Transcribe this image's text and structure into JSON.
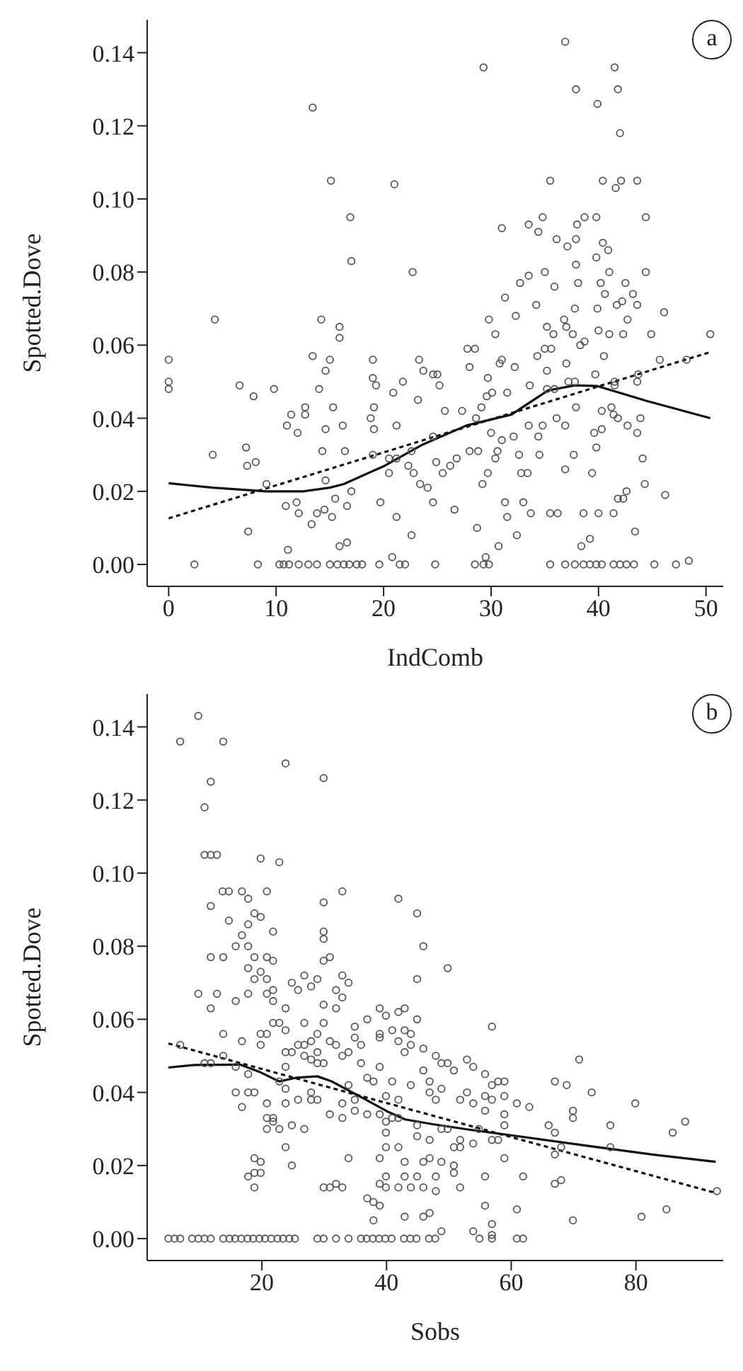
{
  "chart_data": [
    {
      "type": "scatter",
      "xlabel": "IndComb",
      "ylabel": "Spotted.Dove",
      "annotations": [
        "a"
      ],
      "xlim": [
        -2,
        51.6
      ],
      "xticks": [
        0,
        10,
        20,
        30,
        40,
        50
      ],
      "ylim": [
        -0.006,
        0.149
      ],
      "yticks": [
        {
          "value": 0,
          "label": "0.00"
        },
        {
          "value": 0.02,
          "label": "0.02"
        },
        {
          "value": 0.04,
          "label": "0.04"
        },
        {
          "value": 0.06,
          "label": "0.06"
        },
        {
          "value": 0.08,
          "label": "0.08"
        },
        {
          "value": 0.1,
          "label": "0.10"
        },
        {
          "value": 0.12,
          "label": "0.12"
        },
        {
          "value": 0.14,
          "label": "0.14"
        }
      ],
      "series": [
        {
          "marker": "circle",
          "color": "#555555",
          "x": [
            0,
            0,
            0,
            4.3,
            2.4,
            4.1,
            6.6,
            7.2,
            7.3,
            7.4,
            7.9,
            8.1,
            8.3,
            9.1,
            9.8,
            11,
            11.4,
            11.1,
            10.9,
            10.3,
            10.7,
            11.2,
            12.1,
            13,
            13.8,
            12.7,
            12.7,
            12,
            11.9,
            12.1,
            13.4,
            13.4,
            14,
            14.2,
            14.6,
            15,
            15.1,
            14.6,
            14.3,
            14.6,
            14.5,
            13.3,
            13.8,
            15.2,
            15.3,
            15.5,
            15.9,
            15.9,
            16.9,
            17,
            16.2,
            16.4,
            16.6,
            16.6,
            15.9,
            17,
            15,
            15.7,
            16.3,
            16.8,
            17.5,
            18,
            19,
            19,
            19.3,
            19.1,
            18.8,
            19.1,
            19,
            19.7,
            21,
            20.9,
            21.2,
            20.5,
            20.5,
            21.2,
            21.2,
            20.8,
            19.6,
            21.5,
            22,
            22.7,
            21.8,
            23.3,
            23.2,
            23.7,
            22.6,
            22.8,
            22.3,
            23.4,
            24.1,
            22.6,
            24.6,
            24.6,
            25,
            25.2,
            24.6,
            24.9,
            25.5,
            25.7,
            26.2,
            26.6,
            26.8,
            27.3,
            24.8,
            27.8,
            28.5,
            28,
            28,
            28.8,
            28.6,
            29.1,
            29.2,
            28.7,
            29.5,
            29.3,
            28.5,
            29.3,
            29.8,
            29.8,
            29.7,
            29.6,
            30,
            29.7,
            30.1,
            30.4,
            30.6,
            30.4,
            30.7,
            31,
            31.3,
            30.8,
            31,
            31.3,
            31.5,
            31.5,
            31,
            32.2,
            32.3,
            32.7,
            32.4,
            32.1,
            32.6,
            32.8,
            33.4,
            33,
            33.5,
            33.5,
            33.6,
            33.5,
            33.7,
            34.4,
            34.2,
            34.3,
            34.4,
            34.5,
            34.8,
            35,
            35,
            35.2,
            35.2,
            35.2,
            34.8,
            35.5,
            35.6,
            35.8,
            35.9,
            36.1,
            35.9,
            36.1,
            35.5,
            36.2,
            35.5,
            36.9,
            37.8,
            38.6,
            39.2,
            39.8,
            40.3,
            41.4,
            42,
            42.6,
            43.3,
            36.9,
            36.8,
            37,
            37.1,
            37,
            37.2,
            36.9,
            36.9,
            37.9,
            38,
            37.9,
            37.9,
            38.1,
            37.8,
            37.6,
            37.8,
            37.9,
            37.7,
            38.4,
            38.6,
            38.7,
            38.3,
            38.7,
            39.2,
            39.4,
            39.6,
            39.7,
            39.8,
            39.9,
            39.8,
            39.9,
            40,
            39.8,
            40,
            40.2,
            40.4,
            40.4,
            40.5,
            40.3,
            40.3,
            40.6,
            40.9,
            41,
            41,
            41.5,
            41.8,
            42,
            41.6,
            42.1,
            41.7,
            42.2,
            41.5,
            41.5,
            41.2,
            41.4,
            41.8,
            41.4,
            41.8,
            42.5,
            42.7,
            42.3,
            42.7,
            42.3,
            42.6,
            43.6,
            43.2,
            43.6,
            43.7,
            43.6,
            43.6,
            43.9,
            43.4,
            44.4,
            44.4,
            44.1,
            44.3,
            44.9,
            46.1,
            45.7,
            46.2,
            45.2,
            47.2,
            48.4,
            48.2,
            50.4
          ],
          "values": [
            0.056,
            0.05,
            0.048,
            0.067,
            0,
            0.03,
            0.049,
            0.032,
            0.027,
            0.009,
            0.046,
            0.028,
            0,
            0.022,
            0.048,
            0.038,
            0.041,
            0.004,
            0.016,
            0,
            0,
            0,
            0,
            0,
            0,
            0.043,
            0.041,
            0.036,
            0.017,
            0.014,
            0.125,
            0.057,
            0.048,
            0.067,
            0.053,
            0.056,
            0.105,
            0.037,
            0.031,
            0.023,
            0.015,
            0.011,
            0.014,
            0.013,
            0.043,
            0.018,
            0.065,
            0.062,
            0.095,
            0.083,
            0.038,
            0.031,
            0.016,
            0.006,
            0.005,
            0.02,
            0,
            0,
            0,
            0,
            0,
            0,
            0.056,
            0.051,
            0.049,
            0.043,
            0.04,
            0.037,
            0.03,
            0.017,
            0.104,
            0.047,
            0.038,
            0.029,
            0.025,
            0.029,
            0.013,
            0.002,
            0,
            0,
            0,
            0.08,
            0.05,
            0.056,
            0.045,
            0.053,
            0.031,
            0.025,
            0.027,
            0.022,
            0.021,
            0.008,
            0.035,
            0.052,
            0.052,
            0.049,
            0.017,
            0.028,
            0.025,
            0.042,
            0.027,
            0.015,
            0.029,
            0.042,
            0,
            0.059,
            0.059,
            0.054,
            0.031,
            0.031,
            0.04,
            0.043,
            0.022,
            0.01,
            0.002,
            0.136,
            0,
            0,
            0,
            0.067,
            0.051,
            0.046,
            0.036,
            0.025,
            0.047,
            0.063,
            0.031,
            0.029,
            0.005,
            0.092,
            0.073,
            0.055,
            0.056,
            0.017,
            0.013,
            0.047,
            0.034,
            0.054,
            0.068,
            0.077,
            0.008,
            0.035,
            0.03,
            0.025,
            0.025,
            0.017,
            0.093,
            0.079,
            0.049,
            0.038,
            0.014,
            0.091,
            0.071,
            0.057,
            0.035,
            0.03,
            0.095,
            0.08,
            0.059,
            0.053,
            0.065,
            0.048,
            0.038,
            0.105,
            0.059,
            0.063,
            0.076,
            0.089,
            0.048,
            0.04,
            0.014,
            0.014,
            0,
            0,
            0,
            0,
            0,
            0,
            0,
            0,
            0,
            0,
            0,
            0.143,
            0.067,
            0.065,
            0.087,
            0.055,
            0.05,
            0.026,
            0.038,
            0.13,
            0.093,
            0.089,
            0.082,
            0.077,
            0.07,
            0.063,
            0.05,
            0.043,
            0.03,
            0.005,
            0.014,
            0.095,
            0.06,
            0.061,
            0.007,
            0.025,
            0.036,
            0.052,
            0.095,
            0.126,
            0.084,
            0.07,
            0.064,
            0.032,
            0.014,
            0.077,
            0.105,
            0.088,
            0.057,
            0.042,
            0.037,
            0.074,
            0.086,
            0.08,
            0.063,
            0.136,
            0.13,
            0.118,
            0.103,
            0.105,
            0.071,
            0.072,
            0.05,
            0.049,
            0.043,
            0.041,
            0.04,
            0.014,
            0.018,
            0.077,
            0.067,
            0.063,
            0.038,
            0.018,
            0.02,
            0.105,
            0.074,
            0.071,
            0.052,
            0.05,
            0.036,
            0.04,
            0.009,
            0.095,
            0.08,
            0.029,
            0.022,
            0.063,
            0.069,
            0.056,
            0.019,
            0,
            0,
            0.001,
            0.056,
            0.063
          ]
        },
        {
          "type": "line",
          "line_style": "solid",
          "color": "#111111",
          "x": [
            0,
            4.1,
            9.1,
            12.5,
            15,
            16.3,
            20.1,
            23.5,
            27.7,
            31.9,
            35.3,
            37.8,
            39.9,
            44.5,
            50.4
          ],
          "values": [
            0.0222,
            0.021,
            0.02,
            0.02,
            0.021,
            0.022,
            0.027,
            0.0326,
            0.038,
            0.041,
            0.0476,
            0.049,
            0.0488,
            0.0447,
            0.04
          ]
        },
        {
          "type": "line",
          "line_style": "dashed",
          "color": "#111111",
          "x": [
            0,
            50.4
          ],
          "values": [
            0.0126,
            0.0581
          ]
        }
      ]
    },
    {
      "type": "scatter",
      "xlabel": "Sobs",
      "ylabel": "Spotted.Dove",
      "annotations": [
        "b"
      ],
      "xlim": [
        1.6,
        94
      ],
      "xticks": [
        20,
        40,
        60,
        80
      ],
      "ylim": [
        -0.006,
        0.149
      ],
      "yticks": [
        {
          "value": 0,
          "label": "0.00"
        },
        {
          "value": 0.02,
          "label": "0.02"
        },
        {
          "value": 0.04,
          "label": "0.04"
        },
        {
          "value": 0.06,
          "label": "0.06"
        },
        {
          "value": 0.08,
          "label": "0.08"
        },
        {
          "value": 0.1,
          "label": "0.10"
        },
        {
          "value": 0.12,
          "label": "0.12"
        },
        {
          "value": 0.14,
          "label": "0.14"
        }
      ],
      "series": [
        {
          "marker": "circle",
          "color": "#555555",
          "x": [
            5,
            6,
            6.9,
            8.8,
            9.8,
            10.8,
            11.8,
            13.8,
            14.8,
            15.7,
            16.7,
            17.7,
            18.6,
            19.6,
            20.5,
            21.5,
            22.5,
            23.4,
            24.4,
            25.3,
            28.9,
            29.9,
            31.9,
            33.9,
            35.9,
            36.8,
            37.8,
            38.8,
            39.8,
            40.8,
            42.8,
            43.8,
            44.8,
            46.8,
            47.8,
            54.9,
            56.9,
            60.9,
            61.9,
            6.9,
            9.8,
            11.8,
            10.8,
            10.8,
            11.8,
            12.8,
            13.8,
            23.8,
            29.9,
            11.8,
            13.7,
            14.7,
            14.7,
            9.8,
            11.8,
            11.8,
            12.8,
            13.8,
            13.8,
            13.8,
            6.9,
            10.8,
            11.8,
            15.8,
            15.8,
            15.8,
            16.8,
            16.8,
            17.8,
            16.8,
            15.8,
            16.8,
            17.8,
            17.8,
            17.8,
            17.8,
            17.8,
            17.8,
            18.8,
            18.8,
            18.8,
            18.8,
            19.8,
            19.8,
            19.8,
            19.8,
            19.8,
            20.8,
            20.8,
            20.8,
            20.8,
            20.8,
            20.8,
            20.8,
            20.8,
            18.8,
            19.8,
            18.8,
            19.8,
            17.8,
            18.8,
            21.8,
            21.8,
            21.8,
            21.8,
            21.8,
            22.8,
            22.8,
            21.8,
            21.8,
            22.8,
            22.8,
            23.8,
            23.8,
            23.8,
            23.8,
            23.8,
            23.8,
            23.8,
            24.8,
            24.8,
            24.8,
            24.8,
            25.8,
            25.8,
            25.8,
            26.8,
            26.8,
            26.8,
            26.8,
            26.8,
            27.9,
            27.9,
            27.9,
            27.9,
            27.9,
            28.9,
            28.9,
            28.9,
            28.9,
            28.9,
            29.9,
            29.9,
            29.9,
            29.9,
            29.9,
            29.9,
            29.9,
            30.9,
            30.9,
            30.9,
            29.9,
            30.9,
            31.9,
            32.9,
            31.9,
            31.9,
            31.9,
            32.9,
            32.9,
            32.9,
            32.9,
            32.9,
            32.9,
            33.9,
            33.9,
            33.9,
            33.9,
            34.9,
            34.9,
            34.9,
            34.9,
            35.9,
            35.9,
            36.9,
            36.9,
            36.9,
            36.9,
            37.9,
            37.9,
            37.9,
            38.9,
            38.9,
            38.9,
            38.9,
            38.9,
            38.9,
            38.9,
            38.9,
            39.9,
            39.9,
            39.9,
            39.9,
            39.9,
            39.9,
            39.9,
            40.9,
            40.9,
            40.9,
            41.9,
            41.9,
            41.9,
            41.9,
            41.9,
            41.9,
            41.9,
            42.9,
            42.9,
            42.9,
            42.9,
            42.9,
            42.9,
            43.9,
            43.9,
            43.9,
            43.9,
            44.9,
            44.9,
            44.9,
            44.9,
            44.9,
            44.9,
            45.9,
            45.9,
            45.9,
            45.9,
            45.9,
            45.9,
            46.9,
            46.9,
            46.9,
            46.9,
            46.9,
            47.9,
            47.9,
            47.9,
            47.9,
            48.8,
            48.8,
            48.8,
            48.8,
            48.8,
            49.8,
            49.8,
            49.8,
            50.8,
            50.8,
            50.8,
            50.8,
            51.8,
            51.8,
            51.8,
            51.8,
            52.9,
            52.9,
            53.9,
            53.9,
            53.9,
            53.9,
            54.8,
            55.8,
            55.8,
            55.8,
            55.8,
            55.8,
            56.9,
            56.9,
            56.9,
            56.9,
            56.9,
            56.9,
            57.9,
            57.9,
            58.9,
            58.9,
            58.9,
            58.9,
            58.9,
            60.9,
            60.9,
            61.9,
            62.9,
            66,
            67,
            67,
            67,
            67,
            68,
            68,
            68.9,
            69.9,
            69.9,
            69.9,
            70.9,
            72.9,
            75.9,
            75.9,
            79.9,
            80.9,
            84.9,
            85.9,
            87.9,
            93
          ],
          "values": [
            0,
            0,
            0,
            0,
            0,
            0,
            0,
            0,
            0,
            0,
            0,
            0,
            0,
            0,
            0,
            0,
            0,
            0,
            0,
            0,
            0,
            0,
            0,
            0,
            0,
            0,
            0,
            0,
            0,
            0,
            0,
            0,
            0,
            0,
            0,
            0,
            0,
            0,
            0,
            0.136,
            0.143,
            0.125,
            0.118,
            0.105,
            0.105,
            0.105,
            0.136,
            0.13,
            0.126,
            0.091,
            0.095,
            0.095,
            0.087,
            0.067,
            0.077,
            0.063,
            0.067,
            0.077,
            0.056,
            0.05,
            0.053,
            0.048,
            0.048,
            0.08,
            0.065,
            0.047,
            0.095,
            0.083,
            0.08,
            0.054,
            0.04,
            0.036,
            0.093,
            0.086,
            0.074,
            0.067,
            0.045,
            0.04,
            0.04,
            0.089,
            0.071,
            0.077,
            0.104,
            0.088,
            0.073,
            0.056,
            0.053,
            0.095,
            0.077,
            0.067,
            0.071,
            0.056,
            0.037,
            0.033,
            0.03,
            0.022,
            0.021,
            0.018,
            0.018,
            0.017,
            0.014,
            0.084,
            0.076,
            0.068,
            0.065,
            0.059,
            0.059,
            0.103,
            0.032,
            0.033,
            0.03,
            0.043,
            0.063,
            0.057,
            0.051,
            0.047,
            0.041,
            0.037,
            0.025,
            0.07,
            0.051,
            0.031,
            0.02,
            0.068,
            0.053,
            0.038,
            0.072,
            0.059,
            0.053,
            0.05,
            0.03,
            0.069,
            0.054,
            0.049,
            0.04,
            0.038,
            0.071,
            0.056,
            0.051,
            0.048,
            0.038,
            0.092,
            0.084,
            0.082,
            0.076,
            0.064,
            0.059,
            0.048,
            0.077,
            0.054,
            0.034,
            0.014,
            0.014,
            0.015,
            0.014,
            0.068,
            0.063,
            0.053,
            0.095,
            0.072,
            0.066,
            0.05,
            0.037,
            0.033,
            0.07,
            0.051,
            0.042,
            0.022,
            0.058,
            0.055,
            0.038,
            0.035,
            0.053,
            0.048,
            0.06,
            0.044,
            0.034,
            0.011,
            0.043,
            0.01,
            0.005,
            0.063,
            0.056,
            0.055,
            0.047,
            0.034,
            0.022,
            0.015,
            0.009,
            0.061,
            0.039,
            0.032,
            0.029,
            0.025,
            0.017,
            0.014,
            0.057,
            0.043,
            0.033,
            0.093,
            0.062,
            0.054,
            0.038,
            0.033,
            0.025,
            0.014,
            0.063,
            0.057,
            0.051,
            0.021,
            0.017,
            0.006,
            0.056,
            0.053,
            0.042,
            0.014,
            0.089,
            0.071,
            0.06,
            0.031,
            0.028,
            0.017,
            0.08,
            0.052,
            0.046,
            0.021,
            0.014,
            0.006,
            0.043,
            0.04,
            0.027,
            0.022,
            0.007,
            0.05,
            0.038,
            0.017,
            0.013,
            0.048,
            0.041,
            0.03,
            0.021,
            0.002,
            0.074,
            0.048,
            0.03,
            0.046,
            0.025,
            0.02,
            0.018,
            0.038,
            0.027,
            0.025,
            0.014,
            0.049,
            0.04,
            0.047,
            0.037,
            0.026,
            0.002,
            0.03,
            0.045,
            0.039,
            0.035,
            0.017,
            0.009,
            0.058,
            0.042,
            0.038,
            0.027,
            0.004,
            0.001,
            0.043,
            0.027,
            0.043,
            0.039,
            0.034,
            0.031,
            0.022,
            0.037,
            0.008,
            0.017,
            0.036,
            0.031,
            0.043,
            0.029,
            0.023,
            0.015,
            0.025,
            0.016,
            0.042,
            0.035,
            0.033,
            0.005,
            0.049,
            0.04,
            0.031,
            0.025,
            0.037,
            0.006,
            0.008,
            0.029,
            0.032,
            0.013
          ]
        },
        {
          "type": "line",
          "line_style": "solid",
          "color": "#111111",
          "x": [
            5,
            9.2,
            16.5,
            19.5,
            22.8,
            25.4,
            28.9,
            31.2,
            35.7,
            40.1,
            43,
            47.4,
            53.3,
            60.7,
            71.7,
            82.7,
            92.8
          ],
          "values": [
            0.0468,
            0.0475,
            0.0476,
            0.0457,
            0.043,
            0.044,
            0.0444,
            0.043,
            0.0389,
            0.0348,
            0.0326,
            0.0313,
            0.0298,
            0.0281,
            0.0255,
            0.023,
            0.021
          ]
        },
        {
          "type": "line",
          "line_style": "dashed",
          "color": "#111111",
          "x": [
            5,
            92.8
          ],
          "values": [
            0.0534,
            0.0125
          ]
        }
      ]
    }
  ]
}
